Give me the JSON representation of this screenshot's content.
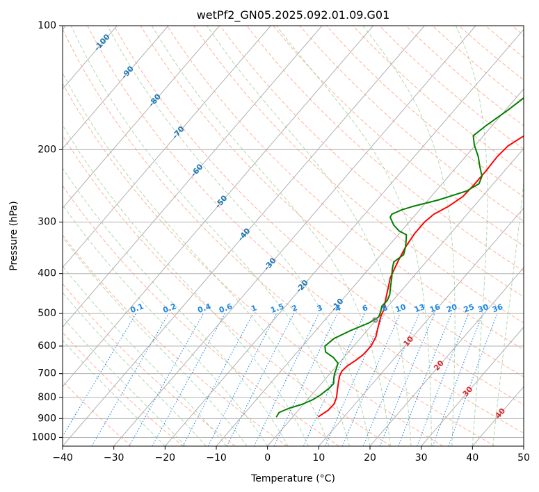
{
  "chart_data": {
    "type": "line",
    "chart_kind": "skew-t log-p diagram",
    "title": "wetPf2_GN05.2025.092.01.09.G01",
    "xlabel": "Temperature (°C)",
    "ylabel": "Pressure (hPa)",
    "xlim": [
      -40,
      50
    ],
    "ylim": [
      1050,
      100
    ],
    "y_scale": "log",
    "x_ticks": [
      -40,
      -30,
      -20,
      -10,
      0,
      10,
      20,
      30,
      40,
      50
    ],
    "y_ticks": [
      100,
      200,
      300,
      400,
      500,
      600,
      700,
      800,
      900,
      1000
    ],
    "grid": true,
    "colors": {
      "temperature": "#ff0000",
      "dewpoint": "#008000",
      "dry_adiabats": "#ff9d7d",
      "moist_adiabats": "#9bcf9b",
      "mixing_ratio": "#1e88e5",
      "isotherms": "#808080",
      "isotherm_label": "#1f77b4",
      "warm_label": "#d62728",
      "zero_label": "#808080"
    },
    "series": [
      {
        "key": "temperature",
        "points": [
          [
            5.0,
            890
          ],
          [
            5.8,
            860
          ],
          [
            5.9,
            830
          ],
          [
            5.3,
            800
          ],
          [
            4.3,
            770
          ],
          [
            3.3,
            740
          ],
          [
            2.3,
            710
          ],
          [
            1.9,
            690
          ],
          [
            2.1,
            670
          ],
          [
            2.8,
            650
          ],
          [
            3.3,
            630
          ],
          [
            3.4,
            600
          ],
          [
            2.8,
            570
          ],
          [
            1.8,
            545
          ],
          [
            0.8,
            520
          ],
          [
            0.2,
            505
          ],
          [
            -0.2,
            490
          ],
          [
            -1.2,
            470
          ],
          [
            -2.2,
            450
          ],
          [
            -3.2,
            430
          ],
          [
            -4.3,
            410
          ],
          [
            -5.0,
            390
          ],
          [
            -5.7,
            370
          ],
          [
            -6.5,
            345
          ],
          [
            -7.0,
            320
          ],
          [
            -7.0,
            300
          ],
          [
            -6.5,
            287
          ],
          [
            -5.0,
            275
          ],
          [
            -3.8,
            260
          ],
          [
            -3.6,
            243
          ],
          [
            -3.6,
            225
          ],
          [
            -3.8,
            208
          ],
          [
            -3.5,
            196
          ],
          [
            -2.2,
            186
          ],
          [
            0.0,
            178
          ],
          [
            2.5,
            170
          ],
          [
            5.0,
            162
          ],
          [
            8.0,
            153
          ],
          [
            11.0,
            145
          ],
          [
            14.0,
            137
          ],
          [
            17.0,
            128
          ],
          [
            20.0,
            120
          ],
          [
            23.0,
            112
          ],
          [
            26.0,
            105
          ],
          [
            28.5,
            100
          ]
        ]
      },
      {
        "key": "dewpoint",
        "points": [
          [
            -3.2,
            890
          ],
          [
            -3.4,
            870
          ],
          [
            -2.2,
            850
          ],
          [
            -0.2,
            830
          ],
          [
            1.0,
            810
          ],
          [
            1.7,
            790
          ],
          [
            2.3,
            760
          ],
          [
            2.4,
            740
          ],
          [
            1.6,
            720
          ],
          [
            0.9,
            700
          ],
          [
            0.4,
            680
          ],
          [
            -0.2,
            660
          ],
          [
            -2.0,
            640
          ],
          [
            -4.5,
            620
          ],
          [
            -5.6,
            600
          ],
          [
            -5.1,
            575
          ],
          [
            -3.2,
            550
          ],
          [
            -0.9,
            527
          ],
          [
            0.0,
            510
          ],
          [
            -0.5,
            495
          ],
          [
            -1.2,
            480
          ],
          [
            -1.1,
            465
          ],
          [
            -1.6,
            450
          ],
          [
            -2.8,
            430
          ],
          [
            -4.0,
            410
          ],
          [
            -5.4,
            390
          ],
          [
            -6.3,
            375
          ],
          [
            -5.6,
            360
          ],
          [
            -6.5,
            345
          ],
          [
            -7.7,
            330
          ],
          [
            -8.4,
            322
          ],
          [
            -10.5,
            315
          ],
          [
            -12.5,
            305
          ],
          [
            -14.5,
            292
          ],
          [
            -14.7,
            287
          ],
          [
            -13.5,
            280
          ],
          [
            -12.0,
            275
          ],
          [
            -8.0,
            265
          ],
          [
            -4.0,
            252
          ],
          [
            -2.8,
            242
          ],
          [
            -3.5,
            232
          ],
          [
            -5.5,
            220
          ],
          [
            -7.5,
            208
          ],
          [
            -10.2,
            195
          ],
          [
            -12.0,
            185
          ],
          [
            -11.2,
            175
          ],
          [
            -9.5,
            160
          ],
          [
            -8.0,
            145
          ],
          [
            -6.0,
            130
          ],
          [
            -4.0,
            120
          ],
          [
            -1.5,
            110
          ],
          [
            1.0,
            100
          ]
        ]
      }
    ],
    "isotherm_labels": [
      "-100",
      "-90",
      "-80",
      "-70",
      "-60",
      "-50",
      "-40",
      "-30",
      "-20",
      "-10",
      "0",
      "10",
      "20",
      "30",
      "40"
    ],
    "mixing_ratio_labels": [
      "0.1",
      "0.2",
      "0.4",
      "0.6",
      "1",
      "1.5",
      "2",
      "3",
      "4",
      "6",
      "8",
      "10",
      "13",
      "16",
      "20",
      "25",
      "30",
      "36"
    ]
  }
}
